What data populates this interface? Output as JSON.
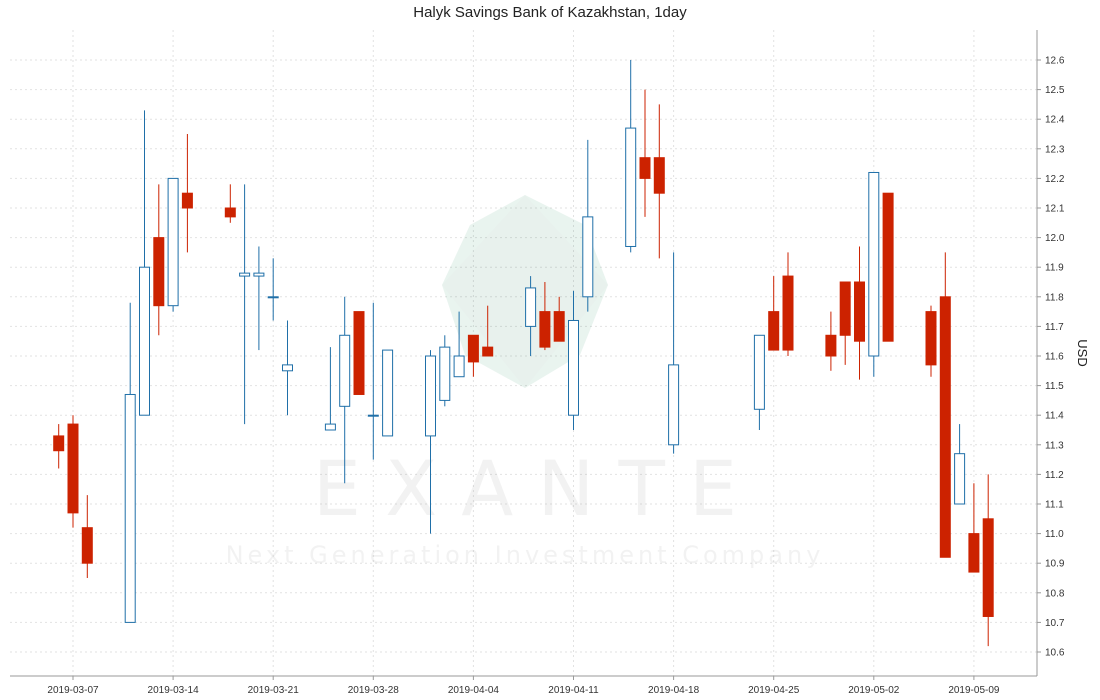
{
  "chart_data": {
    "type": "candlestick",
    "title": "Halyk Savings Bank of Kazakhstan, 1day",
    "ylabel": "USD",
    "xlabel": "",
    "ylim": [
      10.55,
      12.7
    ],
    "y_ticks": [
      "10.6",
      "10.7",
      "10.8",
      "10.9",
      "11.0",
      "11.1",
      "11.2",
      "11.3",
      "11.4",
      "11.5",
      "11.6",
      "11.7",
      "11.8",
      "11.9",
      "12.0",
      "12.1",
      "12.2",
      "12.3",
      "12.4",
      "12.5",
      "12.6"
    ],
    "x_ticks": [
      "2019-03-07",
      "2019-03-14",
      "2019-03-21",
      "2019-03-28",
      "2019-04-04",
      "2019-04-11",
      "2019-04-18",
      "2019-04-25",
      "2019-05-02",
      "2019-05-09"
    ],
    "grid": true,
    "colors": {
      "up": "#1f6fa8",
      "down": "#cc2200",
      "grid": "#e2e2e2",
      "axis": "#999999"
    },
    "watermark": {
      "word": "E X A N T E",
      "tagline": "Next Generation Investment Company"
    },
    "candles": [
      {
        "date": "2019-03-06",
        "open": 11.33,
        "high": 11.37,
        "low": 11.22,
        "close": 11.28
      },
      {
        "date": "2019-03-07",
        "open": 11.37,
        "high": 11.4,
        "low": 11.02,
        "close": 11.07
      },
      {
        "date": "2019-03-08",
        "open": 11.02,
        "high": 11.13,
        "low": 10.85,
        "close": 10.9
      },
      {
        "date": "2019-03-11",
        "open": 10.7,
        "high": 11.78,
        "low": 10.7,
        "close": 11.47
      },
      {
        "date": "2019-03-12",
        "open": 11.4,
        "high": 12.43,
        "low": 11.4,
        "close": 11.9
      },
      {
        "date": "2019-03-13",
        "open": 12.0,
        "high": 12.18,
        "low": 11.67,
        "close": 11.77
      },
      {
        "date": "2019-03-14",
        "open": 11.77,
        "high": 12.2,
        "low": 11.75,
        "close": 12.2
      },
      {
        "date": "2019-03-15",
        "open": 12.15,
        "high": 12.35,
        "low": 11.95,
        "close": 12.1
      },
      {
        "date": "2019-03-18",
        "open": 12.1,
        "high": 12.18,
        "low": 12.05,
        "close": 12.07
      },
      {
        "date": "2019-03-19",
        "open": 11.87,
        "high": 12.18,
        "low": 11.37,
        "close": 11.88
      },
      {
        "date": "2019-03-20",
        "open": 11.87,
        "high": 11.97,
        "low": 11.62,
        "close": 11.88
      },
      {
        "date": "2019-03-21",
        "open": 11.8,
        "high": 11.93,
        "low": 11.72,
        "close": 11.8
      },
      {
        "date": "2019-03-22",
        "open": 11.55,
        "high": 11.72,
        "low": 11.4,
        "close": 11.57
      },
      {
        "date": "2019-03-25",
        "open": 11.35,
        "high": 11.63,
        "low": 11.35,
        "close": 11.37
      },
      {
        "date": "2019-03-26",
        "open": 11.43,
        "high": 11.8,
        "low": 11.17,
        "close": 11.67
      },
      {
        "date": "2019-03-27",
        "open": 11.75,
        "high": 11.75,
        "low": 11.47,
        "close": 11.47
      },
      {
        "date": "2019-03-28",
        "open": 11.4,
        "high": 11.78,
        "low": 11.25,
        "close": 11.4
      },
      {
        "date": "2019-03-29",
        "open": 11.33,
        "high": 11.62,
        "low": 11.33,
        "close": 11.62
      },
      {
        "date": "2019-04-01",
        "open": 11.33,
        "high": 11.62,
        "low": 11.0,
        "close": 11.6
      },
      {
        "date": "2019-04-02",
        "open": 11.45,
        "high": 11.67,
        "low": 11.43,
        "close": 11.63
      },
      {
        "date": "2019-04-03",
        "open": 11.53,
        "high": 11.75,
        "low": 11.53,
        "close": 11.6
      },
      {
        "date": "2019-04-04",
        "open": 11.67,
        "high": 11.67,
        "low": 11.53,
        "close": 11.58
      },
      {
        "date": "2019-04-05",
        "open": 11.63,
        "high": 11.77,
        "low": 11.6,
        "close": 11.6
      },
      {
        "date": "2019-04-08",
        "open": 11.7,
        "high": 11.87,
        "low": 11.6,
        "close": 11.83
      },
      {
        "date": "2019-04-09",
        "open": 11.75,
        "high": 11.85,
        "low": 11.62,
        "close": 11.63
      },
      {
        "date": "2019-04-10",
        "open": 11.75,
        "high": 11.8,
        "low": 11.65,
        "close": 11.65
      },
      {
        "date": "2019-04-11",
        "open": 11.4,
        "high": 11.82,
        "low": 11.35,
        "close": 11.72
      },
      {
        "date": "2019-04-12",
        "open": 11.8,
        "high": 12.33,
        "low": 11.75,
        "close": 12.07
      },
      {
        "date": "2019-04-15",
        "open": 11.97,
        "high": 12.6,
        "low": 11.95,
        "close": 12.37
      },
      {
        "date": "2019-04-16",
        "open": 12.27,
        "high": 12.5,
        "low": 12.07,
        "close": 12.2
      },
      {
        "date": "2019-04-17",
        "open": 12.27,
        "high": 12.45,
        "low": 11.93,
        "close": 12.15
      },
      {
        "date": "2019-04-18",
        "open": 11.3,
        "high": 11.95,
        "low": 11.27,
        "close": 11.57
      },
      {
        "date": "2019-04-24",
        "open": 11.42,
        "high": 11.67,
        "low": 11.35,
        "close": 11.67
      },
      {
        "date": "2019-04-25",
        "open": 11.75,
        "high": 11.87,
        "low": 11.62,
        "close": 11.62
      },
      {
        "date": "2019-04-26",
        "open": 11.87,
        "high": 11.95,
        "low": 11.6,
        "close": 11.62
      },
      {
        "date": "2019-04-29",
        "open": 11.67,
        "high": 11.75,
        "low": 11.55,
        "close": 11.6
      },
      {
        "date": "2019-04-30",
        "open": 11.85,
        "high": 11.85,
        "low": 11.57,
        "close": 11.67
      },
      {
        "date": "2019-05-01",
        "open": 11.85,
        "high": 11.97,
        "low": 11.52,
        "close": 11.65
      },
      {
        "date": "2019-05-02",
        "open": 11.6,
        "high": 12.22,
        "low": 11.53,
        "close": 12.22
      },
      {
        "date": "2019-05-03",
        "open": 12.15,
        "high": 12.15,
        "low": 11.65,
        "close": 11.65
      },
      {
        "date": "2019-05-06",
        "open": 11.75,
        "high": 11.77,
        "low": 11.53,
        "close": 11.57
      },
      {
        "date": "2019-05-07",
        "open": 11.8,
        "high": 11.95,
        "low": 10.92,
        "close": 10.92
      },
      {
        "date": "2019-05-08",
        "open": 11.1,
        "high": 11.37,
        "low": 11.1,
        "close": 11.27
      },
      {
        "date": "2019-05-09",
        "open": 11.0,
        "high": 11.17,
        "low": 10.87,
        "close": 10.87
      },
      {
        "date": "2019-05-10",
        "open": 11.05,
        "high": 11.2,
        "low": 10.62,
        "close": 10.72
      }
    ]
  }
}
